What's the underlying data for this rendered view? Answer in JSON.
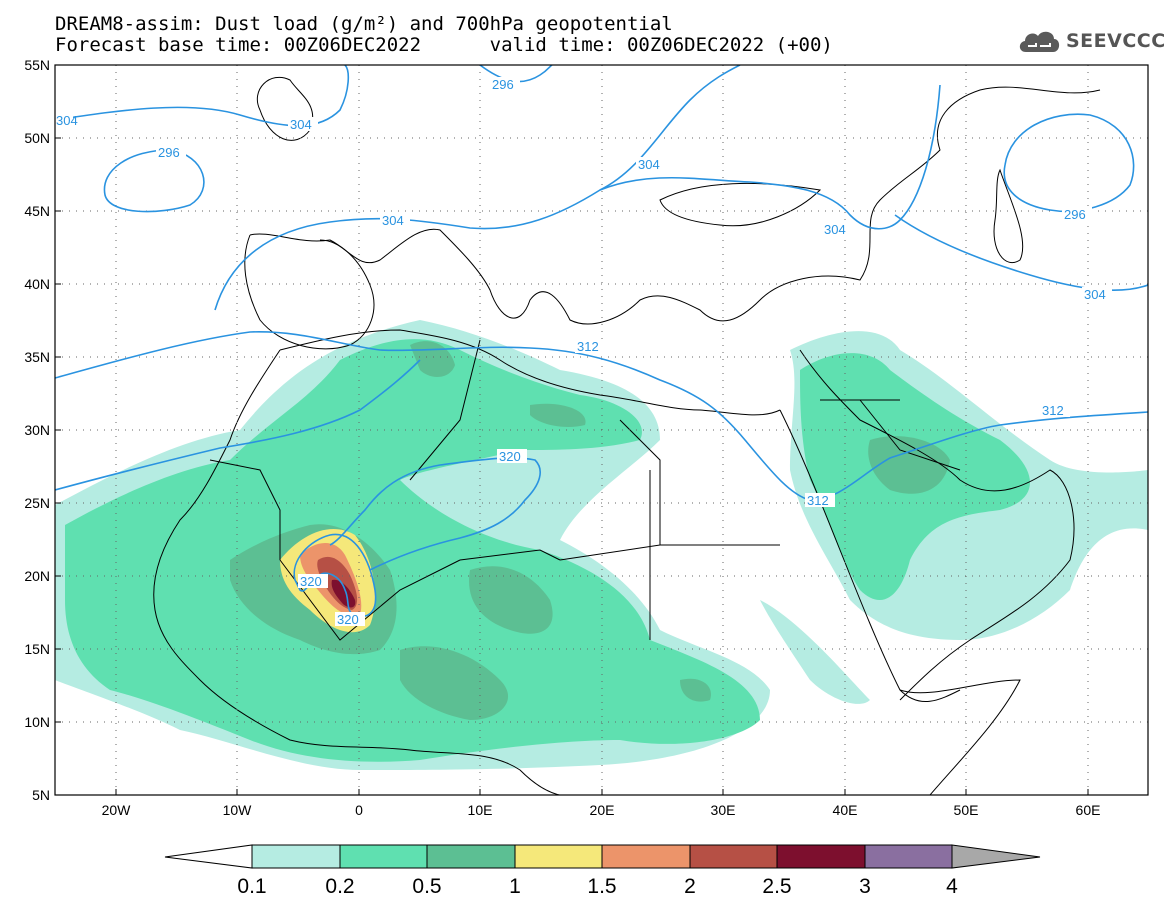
{
  "title": {
    "line1": "DREAM8-assim: Dust load (g/m²) and 700hPa geopotential",
    "line2": "Forecast base time: 00Z06DEC2022      valid time: 00Z06DEC2022 (+00)"
  },
  "logo": {
    "text": "SEEVCCC",
    "icon": "cloud-icon"
  },
  "axes": {
    "lat_labels": [
      "55N",
      "50N",
      "45N",
      "40N",
      "35N",
      "30N",
      "25N",
      "20N",
      "15N",
      "10N",
      "5N"
    ],
    "lon_labels": [
      "20W",
      "10W",
      "0",
      "10E",
      "20E",
      "30E",
      "40E",
      "50E",
      "60E"
    ],
    "lat_range": [
      5,
      55
    ],
    "lon_range": [
      -25,
      65
    ],
    "grid": "dotted"
  },
  "contours": {
    "color": "#2a93e0",
    "labels": [
      "296",
      "304",
      "296",
      "304",
      "304",
      "304",
      "296",
      "304",
      "304",
      "312",
      "312",
      "312",
      "320",
      "320",
      "320"
    ]
  },
  "colorbar": {
    "ticks": [
      "0.1",
      "0.2",
      "0.5",
      "1",
      "1.5",
      "2",
      "2.5",
      "3",
      "4"
    ],
    "colors": [
      "#ffffff",
      "#b5ece2",
      "#5fe0b0",
      "#5cbf93",
      "#f5e87a",
      "#ec946a",
      "#b65045",
      "#7d0f2e",
      "#8a6fa0",
      "#a8a8a8"
    ]
  },
  "shading": {
    "levels": [
      0.1,
      0.2,
      0.5,
      1,
      1.5,
      2,
      2.5,
      3,
      4
    ],
    "colors": [
      "#b5ece2",
      "#5fe0b0",
      "#5cbf93",
      "#f5e87a",
      "#ec946a",
      "#b65045",
      "#7d0f2e",
      "#8a6fa0"
    ]
  }
}
